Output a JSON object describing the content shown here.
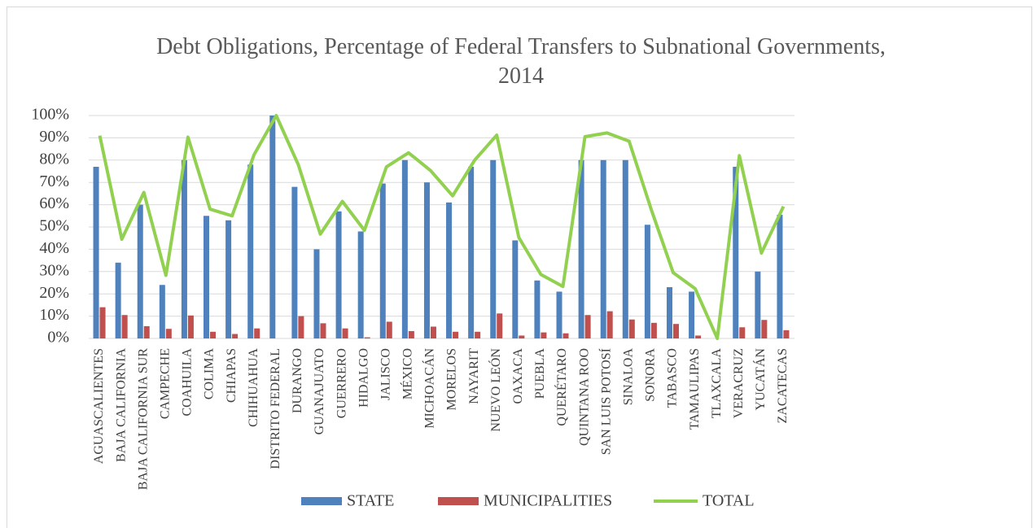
{
  "chart_data": {
    "type": "bar",
    "title": "Debt Obligations, Percentage of Federal Transfers to Subnational Governments, 2014",
    "categories": [
      "AGUASCALIENTES",
      "BAJA CALIFORNIA",
      "BAJA CALIFORNIA SUR",
      "CAMPECHE",
      "COAHUILA",
      "COLIMA",
      "CHIAPAS",
      "CHIHUAHUA",
      "DISTRITO FEDERAL",
      "DURANGO",
      "GUANAJUATO",
      "GUERRERO",
      "HIDALGO",
      "JALISCO",
      "MÉXICO",
      "MICHOACÁN",
      "MORELOS",
      "NAYARIT",
      "NUEVO LEÓN",
      "OAXACA",
      "PUEBLA",
      "QUERÉTARO",
      "QUINTANA ROO",
      "SAN LUIS POTOSÍ",
      "SINALOA",
      "SONORA",
      "TABASCO",
      "TAMAULIPAS",
      "TLAXCALA",
      "VERACRUZ",
      "YUCATÁN",
      "ZACATECAS"
    ],
    "series": [
      {
        "name": "STATE",
        "color": "#4f81bd",
        "values": [
          77,
          34,
          60,
          24,
          80,
          55,
          53,
          78,
          100,
          68,
          40,
          57,
          48,
          69.5,
          80,
          70,
          61,
          77,
          80,
          44,
          26,
          21,
          80,
          80,
          80,
          51,
          23,
          21,
          0,
          77,
          30,
          55.5
        ]
      },
      {
        "name": "MUNICIPALITIES",
        "color": "#c0504d",
        "values": [
          14,
          10.5,
          5.5,
          4.3,
          10.3,
          3,
          2,
          4.5,
          0,
          10,
          6.8,
          4.5,
          0.5,
          7.5,
          3.3,
          5.3,
          3,
          3,
          11.2,
          1.3,
          2.7,
          2.3,
          10.5,
          12.2,
          8.5,
          7,
          6.5,
          1.3,
          0,
          5,
          8.3,
          3.7
        ]
      },
      {
        "name": "TOTAL",
        "color": "#92d050",
        "type": "line",
        "values": [
          91,
          44.5,
          65.5,
          28.3,
          90.3,
          58,
          55,
          82.5,
          100,
          78,
          46.8,
          61.5,
          48.5,
          77,
          83.3,
          75.3,
          64,
          80,
          91.2,
          45.3,
          28.7,
          23.3,
          90.5,
          92.2,
          88.5,
          58,
          29.5,
          22.3,
          0,
          82,
          38.3,
          59.2
        ]
      }
    ],
    "ylim": [
      0,
      100
    ],
    "yticks": [
      {
        "value": 0,
        "label": "0%"
      },
      {
        "value": 10,
        "label": "10%"
      },
      {
        "value": 20,
        "label": "20%"
      },
      {
        "value": 30,
        "label": "30%"
      },
      {
        "value": 40,
        "label": "40%"
      },
      {
        "value": 50,
        "label": "50%"
      },
      {
        "value": 60,
        "label": "60%"
      },
      {
        "value": 70,
        "label": "70%"
      },
      {
        "value": 80,
        "label": "80%"
      },
      {
        "value": 90,
        "label": "90%"
      },
      {
        "value": 100,
        "label": "100%"
      }
    ],
    "grid": true,
    "legend": "bottom"
  }
}
